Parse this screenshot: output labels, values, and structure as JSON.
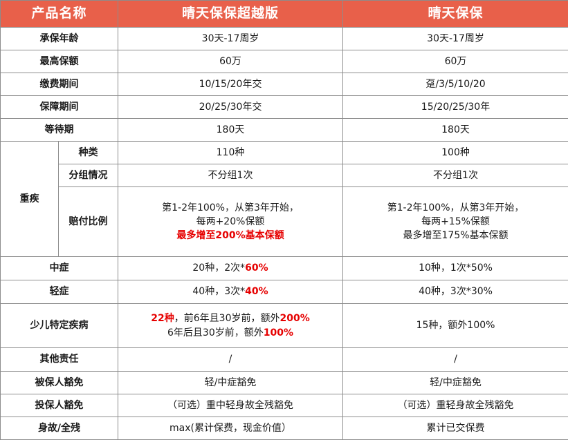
{
  "header": {
    "col1": "产品名称",
    "col2": "晴天保保超越版",
    "col3": "晴天保保"
  },
  "rows": {
    "age": {
      "label": "承保年龄",
      "a": "30天-17周岁",
      "b": "30天-17周岁"
    },
    "max_sum": {
      "label": "最高保额",
      "a": "60万",
      "b": "60万"
    },
    "pay_term": {
      "label": "缴费期间",
      "a": "10/15/20年交",
      "b": "趸/3/5/10/20"
    },
    "cover": {
      "label": "保障期间",
      "a": "20/25/30年交",
      "b": "15/20/25/30年"
    },
    "wait": {
      "label": "等待期",
      "a": "180天",
      "b": "180天"
    }
  },
  "critical": {
    "label": "重疾",
    "types": {
      "label": "种类",
      "a": "110种",
      "b": "100种"
    },
    "groups": {
      "label": "分组情况",
      "a": "不分组1次",
      "b": "不分组1次"
    },
    "payout": {
      "label": "赔付比例",
      "a": [
        "第1-2年100%，从第3年开始，",
        "每两+20%保额",
        "最多增至200%基本保额"
      ],
      "b": [
        "第1-2年100%，从第3年开始，",
        "每两+15%保额",
        "最多增至175%基本保额"
      ]
    }
  },
  "moderate": {
    "label": "中症",
    "a_prefix": "20种，2次*",
    "a_hl": "60%",
    "b": "10种，1次*50%"
  },
  "mild": {
    "label": "轻症",
    "a_prefix": "40种，3次*",
    "a_hl": "40%",
    "b": "40种，3次*30%"
  },
  "child": {
    "label": "少儿特定疾病",
    "a1_hl": "22种",
    "a1_mid": "，前6年且30岁前，额外",
    "a1_hl2": "200%",
    "a2_pre": "6年后且30岁前，额外",
    "a2_hl": "100%",
    "b": "15种，额外100%"
  },
  "other": {
    "label": "其他责任",
    "a": "/",
    "b": "/"
  },
  "insured_waiver": {
    "label": "被保人豁免",
    "a": "轻/中症豁免",
    "b": "轻/中症豁免"
  },
  "holder_waiver": {
    "label": "投保人豁免",
    "a": "（可选）重中轻身故全残豁免",
    "b": "（可选）重轻身故全残豁免"
  },
  "death": {
    "label": "身故/全残",
    "a": "max(累计保费，现金价值）",
    "b": "累计已交保费"
  },
  "colors": {
    "header_bg": "#e8604a",
    "highlight": "#e60000",
    "border": "#8c8c8c"
  }
}
